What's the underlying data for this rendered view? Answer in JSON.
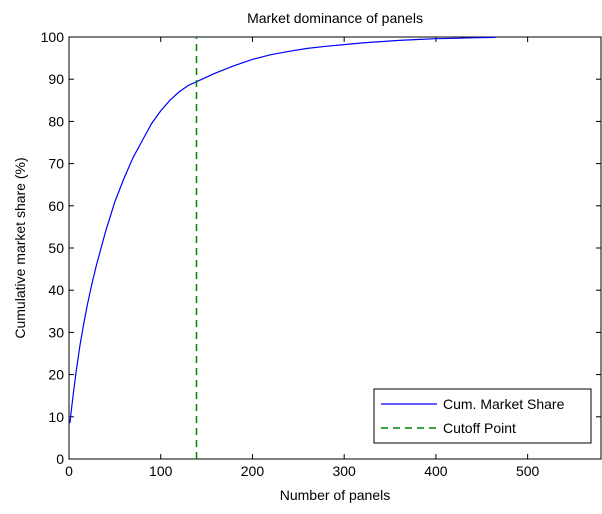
{
  "chart_data": {
    "type": "line",
    "title": "Market dominance of panels",
    "xlabel": "Number of panels",
    "ylabel": "Cumulative market share (%)",
    "xlim": [
      0,
      580
    ],
    "ylim": [
      0,
      100
    ],
    "x_ticks": [
      0,
      100,
      200,
      300,
      400,
      500
    ],
    "y_ticks": [
      0,
      10,
      20,
      30,
      40,
      50,
      60,
      70,
      80,
      90,
      100
    ],
    "grid": false,
    "legend_position": "bottom-right",
    "series": [
      {
        "name": "Cum. Market Share",
        "style": "solid",
        "color": "#0000ff",
        "x": [
          1,
          3,
          5,
          8,
          12,
          16,
          20,
          25,
          30,
          35,
          40,
          45,
          50,
          60,
          70,
          80,
          90,
          100,
          110,
          120,
          130,
          140,
          150,
          160,
          180,
          200,
          220,
          240,
          260,
          280,
          300,
          320,
          340,
          360,
          380,
          400,
          420,
          440,
          465
        ],
        "y": [
          8.5,
          12.5,
          16,
          21,
          27,
          32,
          36.5,
          41.5,
          46,
          50,
          54,
          57.5,
          61,
          66.5,
          71.5,
          75.5,
          79.5,
          82.5,
          85,
          87,
          88.5,
          89.5,
          90.5,
          91.5,
          93.2,
          94.7,
          95.8,
          96.6,
          97.3,
          97.8,
          98.2,
          98.6,
          98.9,
          99.2,
          99.4,
          99.6,
          99.7,
          99.8,
          99.9
        ]
      },
      {
        "name": "Cutoff Point",
        "style": "dashed",
        "color": "#008000",
        "x": [
          139,
          139
        ],
        "y": [
          0,
          100
        ]
      }
    ]
  }
}
